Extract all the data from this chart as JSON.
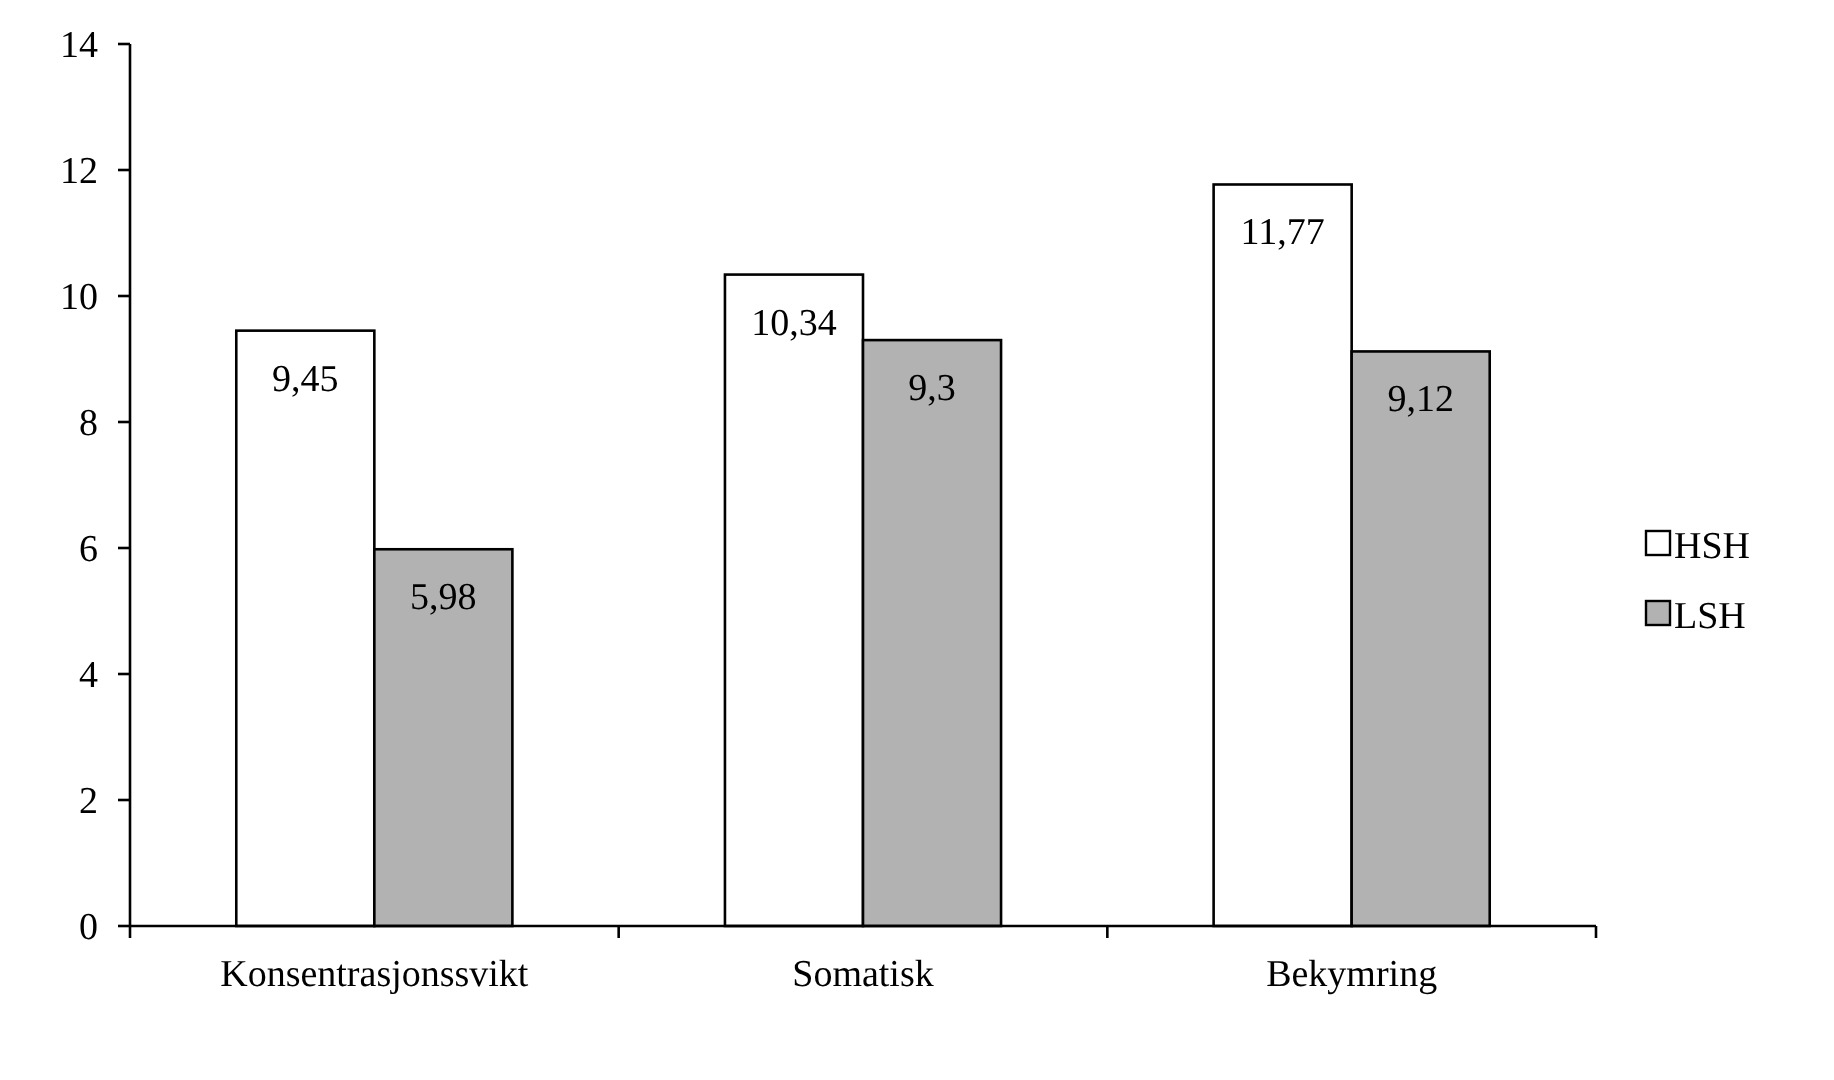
{
  "chart_data": {
    "type": "bar",
    "categories": [
      "Konsentrasjonssvikt",
      "Somatisk",
      "Bekymring"
    ],
    "series": [
      {
        "name": "HSH",
        "color": "#ffffff",
        "values": [
          9.45,
          10.34,
          11.77
        ],
        "value_labels": [
          "9,45",
          "10,34",
          "11,77"
        ]
      },
      {
        "name": "LSH",
        "color": "#b2b2b2",
        "values": [
          5.98,
          9.3,
          9.12
        ],
        "value_labels": [
          "5,98",
          "9,3",
          "9,12"
        ]
      }
    ],
    "ylim": [
      0,
      14
    ],
    "yticks": [
      0,
      2,
      4,
      6,
      8,
      10,
      12,
      14
    ],
    "grid": false,
    "legend": "right"
  }
}
